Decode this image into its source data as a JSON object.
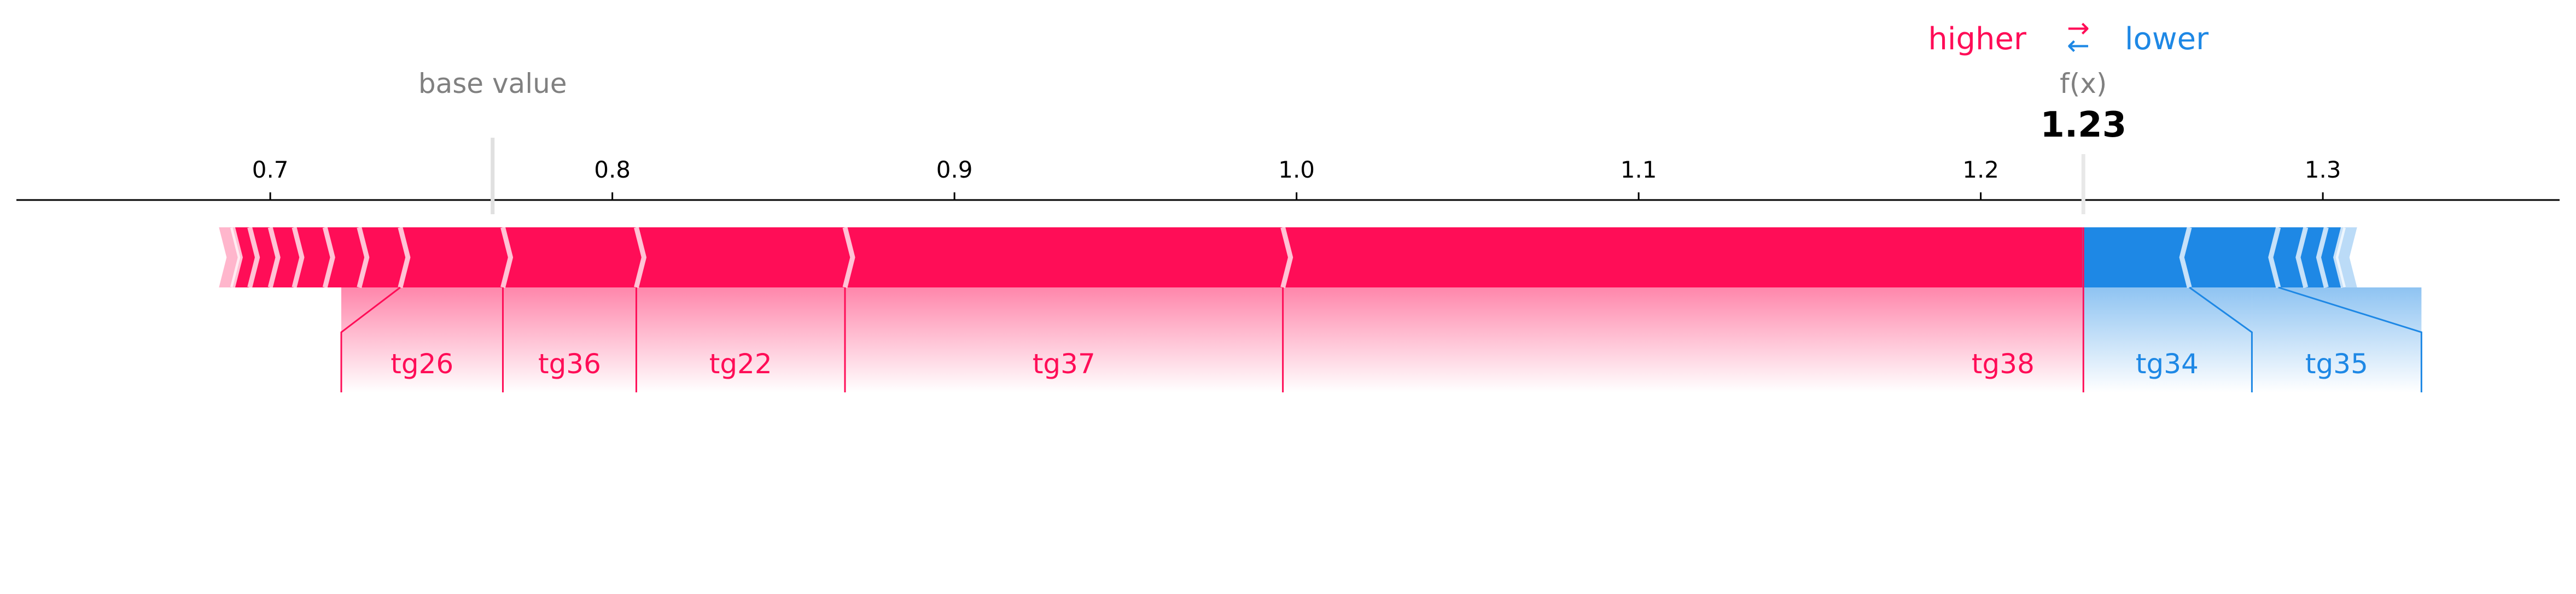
{
  "chart_data": {
    "type": "force",
    "legend": {
      "higher": "higher",
      "lower": "lower",
      "arrows": "⇄"
    },
    "base_value_label": "base value",
    "base_value": 0.765,
    "output_label": "f(x)",
    "output_value": 1.23,
    "output_value_text": "1.23",
    "xlim": [
      0.621,
      1.374
    ],
    "ticks": [
      {
        "value": 0.7,
        "label": "0.7"
      },
      {
        "value": 0.8,
        "label": "0.8"
      },
      {
        "value": 0.9,
        "label": "0.9"
      },
      {
        "value": 1.0,
        "label": "1.0"
      },
      {
        "value": 1.1,
        "label": "1.1"
      },
      {
        "value": 1.2,
        "label": "1.2"
      },
      {
        "value": 1.3,
        "label": "1.3"
      }
    ],
    "positive_color": "#ff0d57",
    "negative_color": "#1e88e5",
    "positive_features": [
      {
        "name": "tg38",
        "from": 0.996,
        "to": 1.2297
      },
      {
        "name": "tg37",
        "from": 0.868,
        "to": 0.996
      },
      {
        "name": "tg22",
        "from": 0.807,
        "to": 0.868
      },
      {
        "name": "tg36",
        "from": 0.768,
        "to": 0.807
      },
      {
        "name": "tg26",
        "from": 0.738,
        "to": 0.768
      },
      {
        "name": "",
        "from": 0.726,
        "to": 0.738
      },
      {
        "name": "",
        "from": 0.716,
        "to": 0.726
      },
      {
        "name": "",
        "from": 0.707,
        "to": 0.716
      },
      {
        "name": "",
        "from": 0.7,
        "to": 0.707
      },
      {
        "name": "",
        "from": 0.694,
        "to": 0.7
      },
      {
        "name": "",
        "from": 0.689,
        "to": 0.694
      },
      {
        "name": "",
        "from": 0.685,
        "to": 0.689
      }
    ],
    "negative_features": [
      {
        "name": "tg34",
        "from": 1.2297,
        "to": 1.261
      },
      {
        "name": "tg35",
        "from": 1.261,
        "to": 1.287
      },
      {
        "name": "",
        "from": 1.287,
        "to": 1.295
      },
      {
        "name": "",
        "from": 1.295,
        "to": 1.301
      },
      {
        "name": "",
        "from": 1.301,
        "to": 1.306
      },
      {
        "name": "",
        "from": 1.306,
        "to": 1.31
      }
    ]
  }
}
